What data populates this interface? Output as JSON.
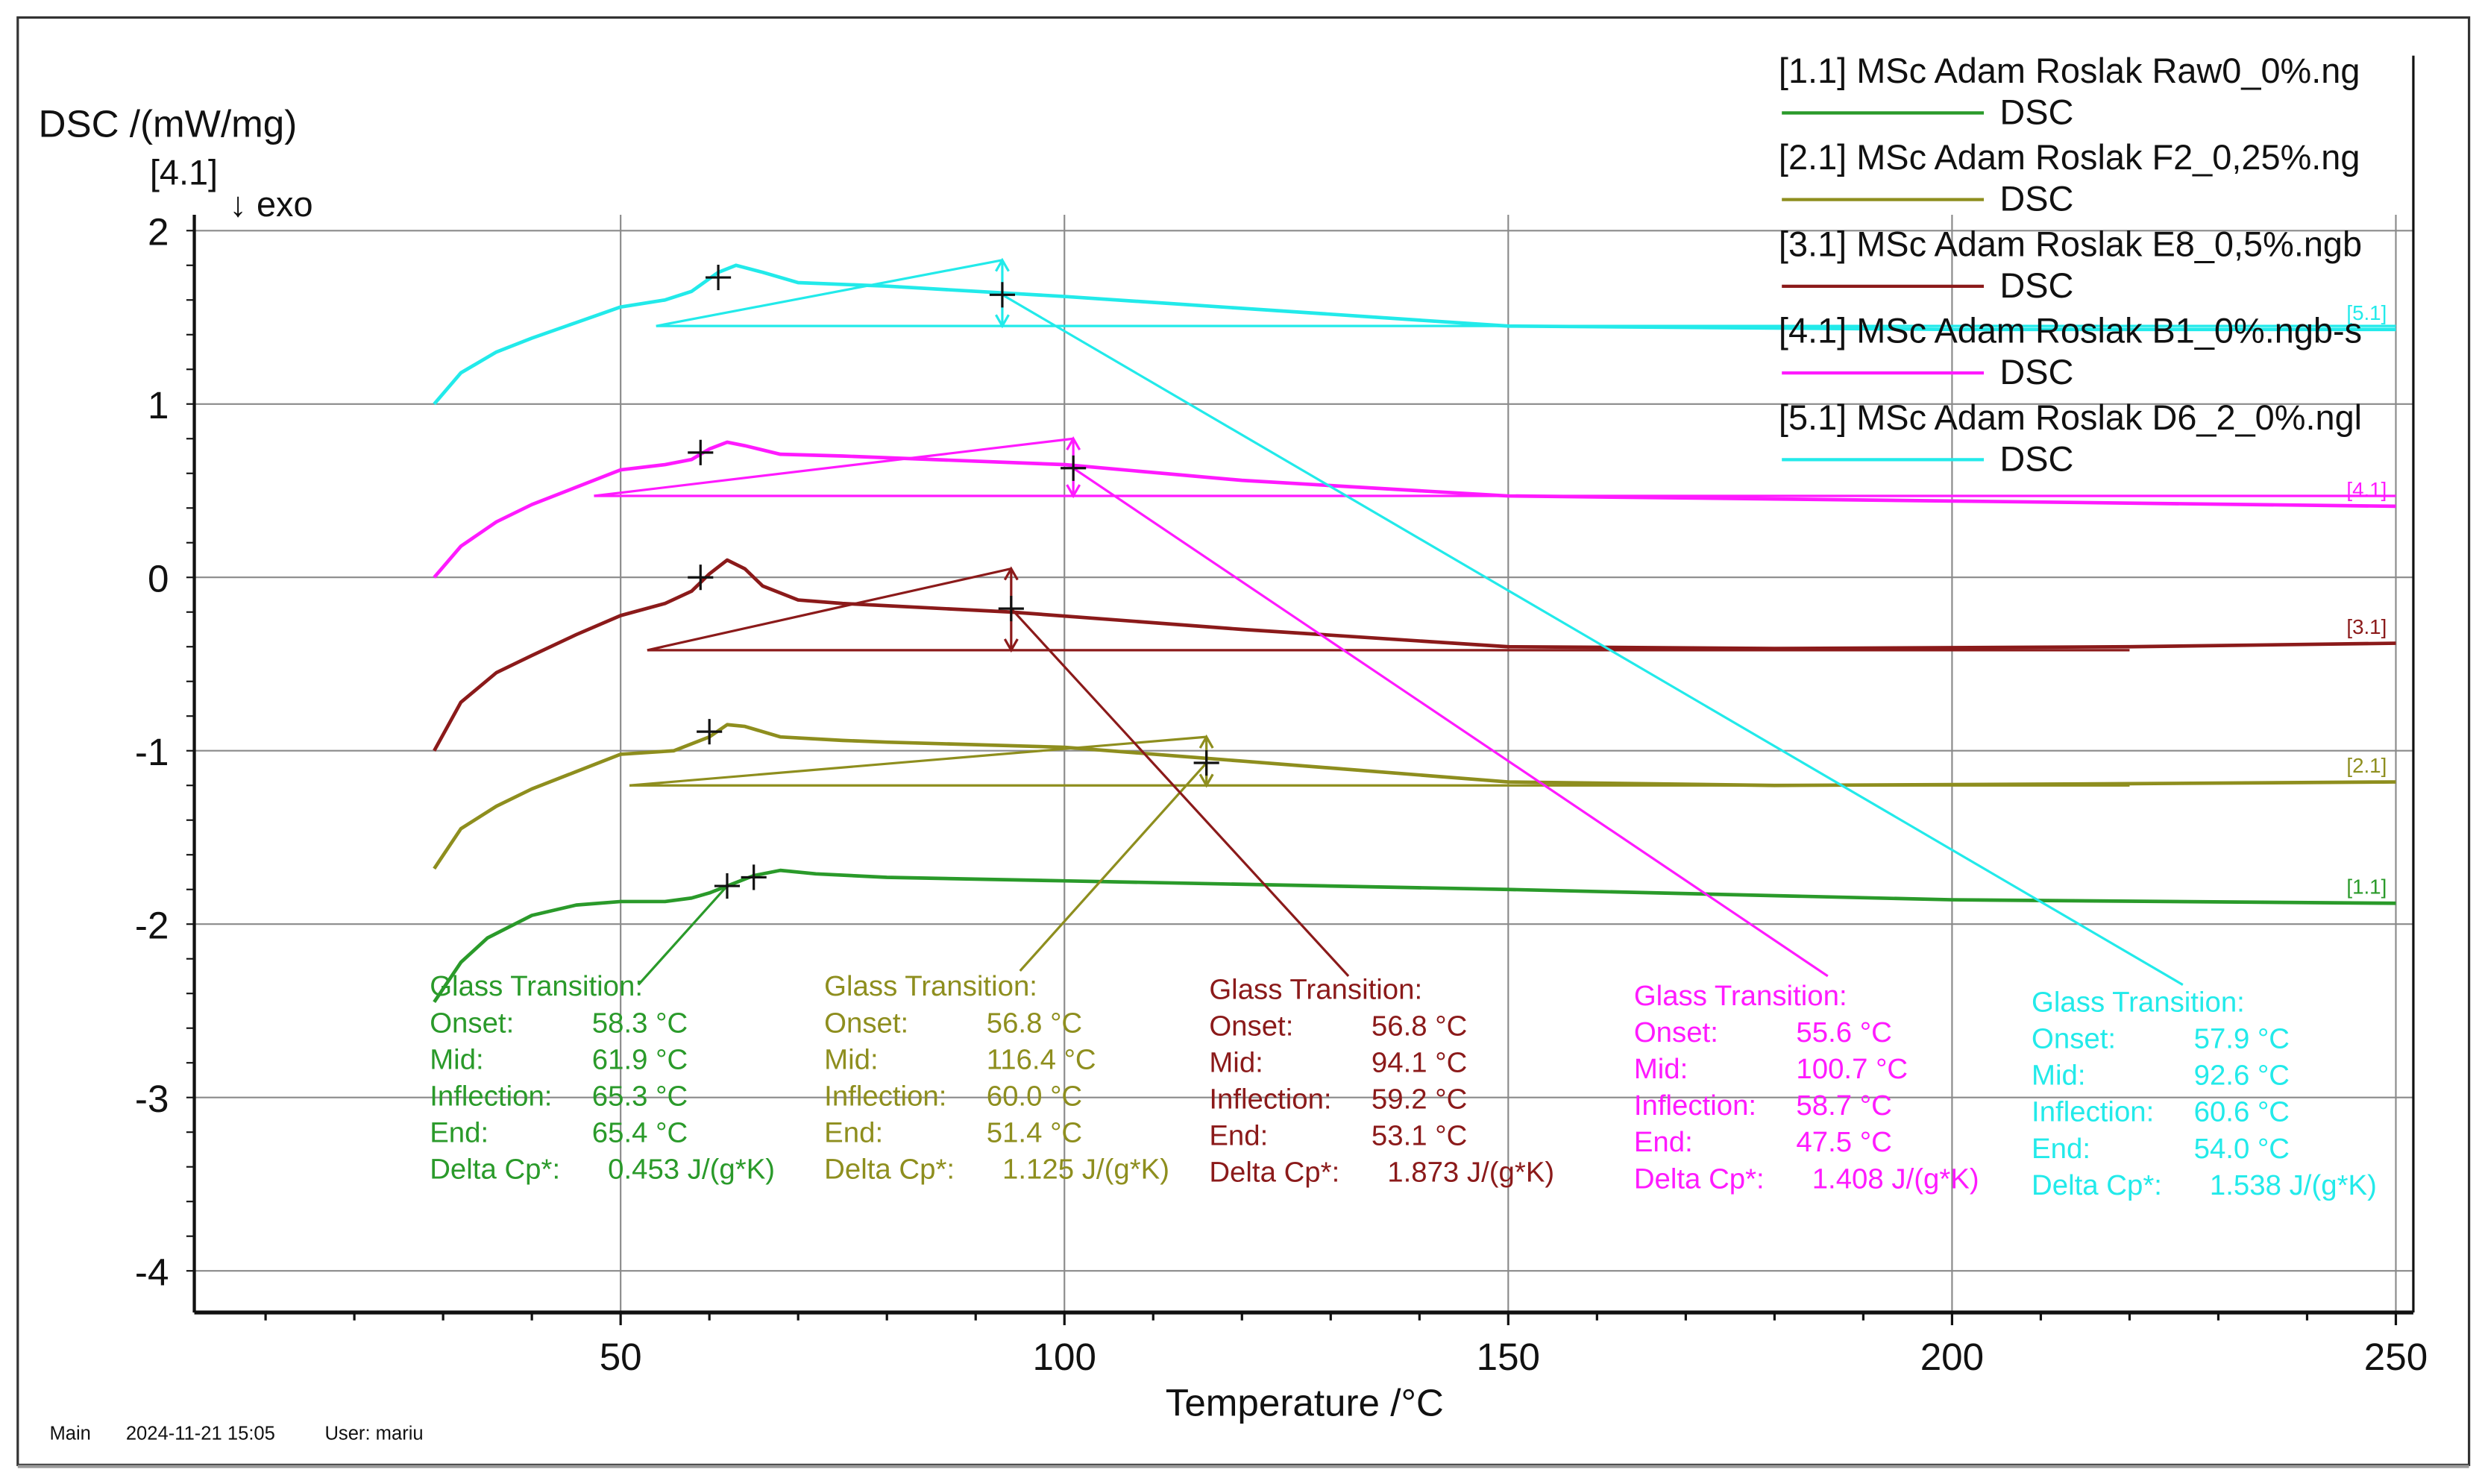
{
  "chart_data": {
    "type": "line",
    "ylabel": "DSC /(mW/mg)",
    "y_marker": "[4.1]",
    "exo_label": "↓ exo",
    "xlabel": "Temperature /°C",
    "xlim": [
      2,
      252
    ],
    "ylim": [
      -4.24,
      2.1
    ],
    "xticks": [
      50,
      100,
      150,
      200,
      250
    ],
    "yticks": [
      2,
      1,
      0,
      -1,
      -2,
      -3,
      -4
    ],
    "grid": true,
    "legend_placement": "top-right",
    "series": [
      {
        "id": "1.1",
        "legend": "[1.1] MSc Adam Roslak Raw0_0%.ng",
        "sub": "DSC",
        "tag": "[1.1]",
        "color": "#2a9a2a",
        "x": [
          29,
          32,
          35,
          40,
          45,
          50,
          55,
          58,
          60,
          62,
          65,
          68,
          72,
          80,
          100,
          150,
          200,
          250
        ],
        "y": [
          -2.45,
          -2.22,
          -2.08,
          -1.95,
          -1.89,
          -1.87,
          -1.87,
          -1.85,
          -1.82,
          -1.78,
          -1.72,
          -1.69,
          -1.71,
          -1.73,
          -1.75,
          -1.8,
          -1.86,
          -1.88
        ],
        "markers": [
          [
            62,
            -1.78
          ],
          [
            65,
            -1.73
          ]
        ],
        "leader": [
          [
            62,
            -1.78
          ],
          [
            52,
            -2.35
          ]
        ],
        "annotation": {
          "title": "Glass Transition:",
          "rows": [
            [
              "Onset:",
              "58.3 °C"
            ],
            [
              "Mid:",
              "61.9 °C"
            ],
            [
              "Inflection:",
              "65.3 °C"
            ],
            [
              "End:",
              "65.4 °C"
            ],
            [
              "Delta Cp*:",
              "0.453 J/(g*K)"
            ]
          ]
        }
      },
      {
        "id": "2.1",
        "legend": "[2.1] MSc Adam Roslak F2_0,25%.ng",
        "sub": "DSC",
        "tag": "[2.1]",
        "color": "#8e8e1e",
        "x": [
          29,
          32,
          36,
          40,
          45,
          50,
          56,
          60,
          62,
          64,
          68,
          75,
          80,
          100,
          120,
          150,
          180,
          220,
          250
        ],
        "y": [
          -1.68,
          -1.45,
          -1.32,
          -1.22,
          -1.12,
          -1.02,
          -1.0,
          -0.92,
          -0.85,
          -0.86,
          -0.92,
          -0.94,
          -0.95,
          -0.98,
          -1.06,
          -1.18,
          -1.2,
          -1.19,
          -1.18
        ],
        "baseline": [
          51,
          220,
          -1.2
        ],
        "tangent": [
          [
            51,
            -1.2
          ],
          [
            116,
            -0.92
          ]
        ],
        "arrow": [
          116,
          -0.92,
          -1.2
        ],
        "markers": [
          [
            60,
            -0.89
          ],
          [
            116,
            -1.07
          ]
        ],
        "leader": [
          [
            116,
            -1.07
          ],
          [
            95,
            -2.27
          ]
        ],
        "annotation": {
          "title": "Glass Transition:",
          "rows": [
            [
              "Onset:",
              "56.8 °C"
            ],
            [
              "Mid:",
              "116.4 °C"
            ],
            [
              "Inflection:",
              "60.0 °C"
            ],
            [
              "End:",
              "51.4 °C"
            ],
            [
              "Delta Cp*:",
              "1.125 J/(g*K)"
            ]
          ]
        }
      },
      {
        "id": "3.1",
        "legend": "[3.1] MSc Adam Roslak E8_0,5%.ngb",
        "sub": "DSC",
        "tag": "[3.1]",
        "color": "#8b1a1a",
        "x": [
          29,
          32,
          36,
          40,
          45,
          50,
          55,
          58,
          60,
          62,
          64,
          66,
          70,
          75,
          94,
          120,
          150,
          180,
          220,
          250
        ],
        "y": [
          -1.0,
          -0.72,
          -0.55,
          -0.45,
          -0.33,
          -0.22,
          -0.15,
          -0.08,
          0.02,
          0.1,
          0.05,
          -0.05,
          -0.13,
          -0.15,
          -0.2,
          -0.3,
          -0.4,
          -0.41,
          -0.4,
          -0.38
        ],
        "baseline": [
          53,
          220,
          -0.42
        ],
        "tangent": [
          [
            53,
            -0.42
          ],
          [
            94,
            0.05
          ]
        ],
        "arrow": [
          94,
          0.05,
          -0.42
        ],
        "markers": [
          [
            59,
            0.0
          ],
          [
            94,
            -0.18
          ]
        ],
        "leader": [
          [
            94,
            -0.18
          ],
          [
            132,
            -2.3
          ]
        ],
        "annotation": {
          "title": "Glass Transition:",
          "rows": [
            [
              "Onset:",
              "56.8 °C"
            ],
            [
              "Mid:",
              "94.1 °C"
            ],
            [
              "Inflection:",
              "59.2 °C"
            ],
            [
              "End:",
              "53.1 °C"
            ],
            [
              "Delta Cp*:",
              "1.873 J/(g*K)"
            ]
          ]
        }
      },
      {
        "id": "4.1",
        "legend": "[4.1] MSc Adam Roslak B1_0%.ngb-s",
        "sub": "DSC",
        "tag": "[4.1]",
        "color": "#ff1aff",
        "x": [
          29,
          32,
          36,
          40,
          45,
          50,
          55,
          58,
          60,
          62,
          64,
          68,
          75,
          100,
          120,
          150,
          200,
          250
        ],
        "y": [
          0.0,
          0.18,
          0.32,
          0.42,
          0.52,
          0.62,
          0.65,
          0.68,
          0.74,
          0.78,
          0.76,
          0.71,
          0.7,
          0.65,
          0.56,
          0.47,
          0.44,
          0.41
        ],
        "baseline": [
          47,
          250,
          0.47
        ],
        "tangent": [
          [
            47,
            0.47
          ],
          [
            101,
            0.8
          ]
        ],
        "arrow": [
          101,
          0.8,
          0.47
        ],
        "markers": [
          [
            59,
            0.72
          ],
          [
            101,
            0.63
          ]
        ],
        "leader": [
          [
            101,
            0.63
          ],
          [
            186,
            -2.3
          ]
        ],
        "annotation": {
          "title": "Glass Transition:",
          "rows": [
            [
              "Onset:",
              "55.6 °C"
            ],
            [
              "Mid:",
              "100.7 °C"
            ],
            [
              "Inflection:",
              "58.7 °C"
            ],
            [
              "End:",
              "47.5 °C"
            ],
            [
              "Delta Cp*:",
              "1.408 J/(g*K)"
            ]
          ]
        }
      },
      {
        "id": "5.1",
        "legend": "[5.1] MSc Adam Roslak D6_2_0%.ngl",
        "sub": "DSC",
        "tag": "[5.1]",
        "color": "#22eaea",
        "x": [
          29,
          32,
          36,
          40,
          45,
          50,
          55,
          58,
          61,
          63,
          66,
          70,
          80,
          100,
          150,
          200,
          250
        ],
        "y": [
          1.0,
          1.18,
          1.3,
          1.38,
          1.47,
          1.56,
          1.6,
          1.65,
          1.76,
          1.8,
          1.76,
          1.7,
          1.68,
          1.62,
          1.45,
          1.43,
          1.43
        ],
        "baseline": [
          54,
          250,
          1.45
        ],
        "tangent": [
          [
            54,
            1.45
          ],
          [
            93,
            1.83
          ]
        ],
        "arrow": [
          93,
          1.83,
          1.45
        ],
        "markers": [
          [
            61,
            1.73
          ],
          [
            93,
            1.63
          ]
        ],
        "leader": [
          [
            93,
            1.63
          ],
          [
            226,
            -2.35
          ]
        ],
        "annotation": {
          "title": "Glass Transition:",
          "rows": [
            [
              "Onset:",
              "57.9 °C"
            ],
            [
              "Mid:",
              "92.6 °C"
            ],
            [
              "Inflection:",
              "60.6 °C"
            ],
            [
              "End:",
              "54.0 °C"
            ],
            [
              "Delta Cp*:",
              "1.538 J/(g*K)"
            ]
          ]
        }
      }
    ]
  },
  "footer": {
    "mode": "Main",
    "datetime": "2024-11-21 15:05",
    "user": "User: mariu"
  }
}
